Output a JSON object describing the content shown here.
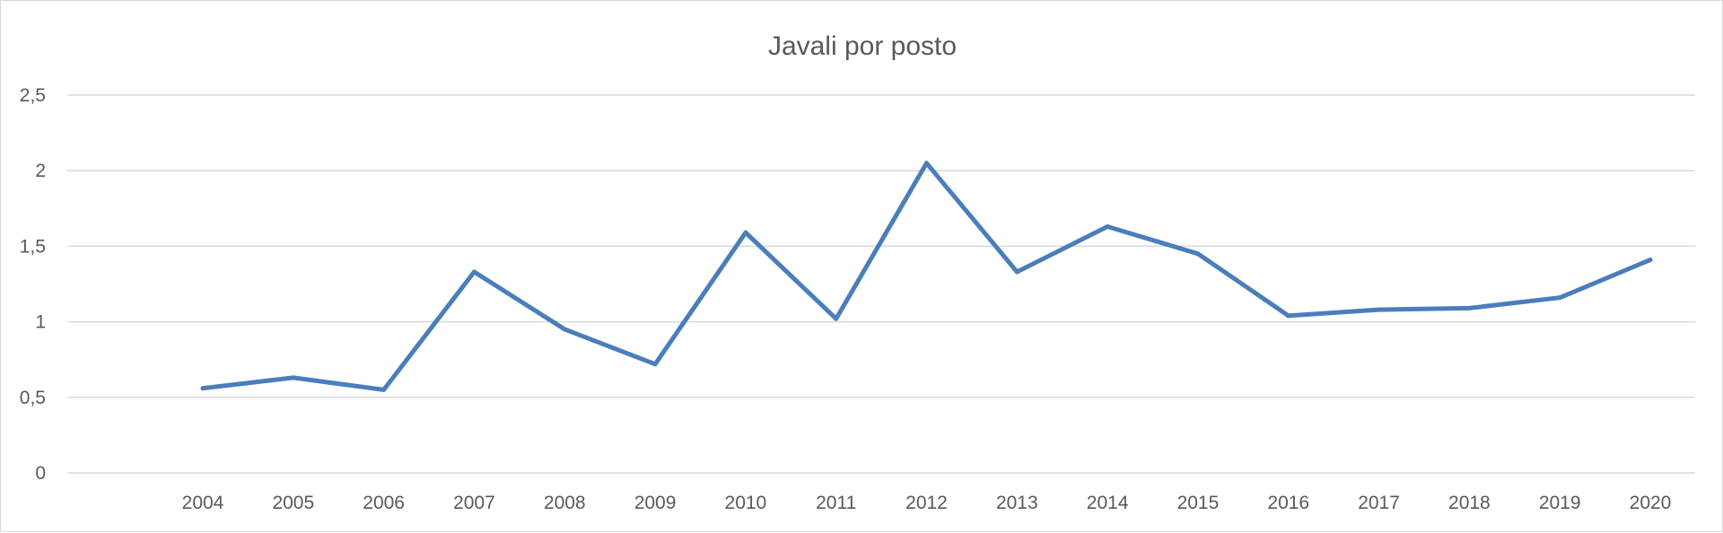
{
  "chart_data": {
    "type": "line",
    "title": "Javali por posto",
    "xlabel": "",
    "ylabel": "",
    "categories": [
      "2004",
      "2005",
      "2006",
      "2007",
      "2008",
      "2009",
      "2010",
      "2011",
      "2012",
      "2013",
      "2014",
      "2015",
      "2016",
      "2017",
      "2018",
      "2019",
      "2020"
    ],
    "series": [
      {
        "values": [
          0.56,
          0.63,
          0.55,
          1.33,
          0.95,
          0.72,
          1.59,
          1.02,
          2.05,
          1.33,
          1.63,
          1.45,
          1.04,
          1.08,
          1.09,
          1.16,
          1.41
        ],
        "color": "#4a7ebb"
      }
    ],
    "ylim": [
      0,
      2.5
    ],
    "yticks": [
      "0",
      "0,5",
      "1",
      "1,5",
      "2",
      "2,5"
    ],
    "grid": true,
    "legend": "none"
  }
}
